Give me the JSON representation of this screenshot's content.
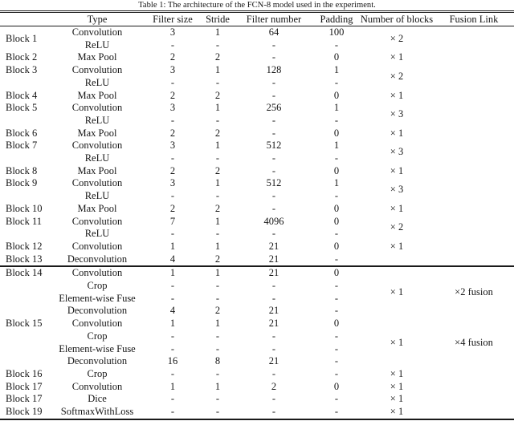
{
  "caption": "Table 1: The architecture of the FCN-8 model used in the experiment.",
  "table": {
    "columns": [
      "",
      "Type",
      "Filter size",
      "Stride",
      "Filter number",
      "Padding",
      "Number of blocks",
      "Fusion Link"
    ],
    "groups": [
      {
        "block": "Block 1",
        "valign": "middle",
        "num": "× 2",
        "fusion": "",
        "rule_after": false,
        "rows": [
          [
            "Convolution",
            "3",
            "1",
            "64",
            "100"
          ],
          [
            "ReLU",
            "-",
            "-",
            "-",
            "-"
          ]
        ]
      },
      {
        "block": "Block 2",
        "valign": "middle",
        "num": "× 1",
        "fusion": "",
        "rule_after": false,
        "rows": [
          [
            "Max Pool",
            "2",
            "2",
            "-",
            "0"
          ]
        ]
      },
      {
        "block": "Block 3",
        "valign": "top",
        "num": "× 2",
        "fusion": "",
        "rule_after": false,
        "rows": [
          [
            "Convolution",
            "3",
            "1",
            "128",
            "1"
          ],
          [
            "ReLU",
            "-",
            "-",
            "-",
            "-"
          ]
        ]
      },
      {
        "block": "Block 4",
        "valign": "middle",
        "num": "× 1",
        "fusion": "",
        "rule_after": false,
        "rows": [
          [
            "Max Pool",
            "2",
            "2",
            "-",
            "0"
          ]
        ]
      },
      {
        "block": "Block 5",
        "valign": "top",
        "num": "× 3",
        "fusion": "",
        "rule_after": false,
        "rows": [
          [
            "Convolution",
            "3",
            "1",
            "256",
            "1"
          ],
          [
            "ReLU",
            "-",
            "-",
            "-",
            "-"
          ]
        ]
      },
      {
        "block": "Block 6",
        "valign": "middle",
        "num": "× 1",
        "fusion": "",
        "rule_after": false,
        "rows": [
          [
            "Max Pool",
            "2",
            "2",
            "-",
            "0"
          ]
        ]
      },
      {
        "block": "Block 7",
        "valign": "top",
        "num": "× 3",
        "fusion": "",
        "rule_after": false,
        "rows": [
          [
            "Convolution",
            "3",
            "1",
            "512",
            "1"
          ],
          [
            "ReLU",
            "-",
            "-",
            "-",
            "-"
          ]
        ]
      },
      {
        "block": "Block 8",
        "valign": "middle",
        "num": "× 1",
        "fusion": "",
        "rule_after": false,
        "rows": [
          [
            "Max Pool",
            "2",
            "2",
            "-",
            "0"
          ]
        ]
      },
      {
        "block": "Block 9",
        "valign": "top",
        "num": "× 3",
        "fusion": "",
        "rule_after": false,
        "rows": [
          [
            "Convolution",
            "3",
            "1",
            "512",
            "1"
          ],
          [
            "ReLU",
            "-",
            "-",
            "-",
            "-"
          ]
        ]
      },
      {
        "block": "Block 10",
        "valign": "middle",
        "num": "× 1",
        "fusion": "",
        "rule_after": false,
        "rows": [
          [
            "Max Pool",
            "2",
            "2",
            "-",
            "0"
          ]
        ]
      },
      {
        "block": "Block 11",
        "valign": "top",
        "num": "× 2",
        "fusion": "",
        "rule_after": false,
        "rows": [
          [
            "Convolution",
            "7",
            "1",
            "4096",
            "0"
          ],
          [
            "ReLU",
            "-",
            "-",
            "-",
            "-"
          ]
        ]
      },
      {
        "block": "Block 12",
        "valign": "middle",
        "num": "× 1",
        "fusion": "",
        "rule_after": false,
        "rows": [
          [
            "Convolution",
            "1",
            "1",
            "21",
            "0"
          ]
        ]
      },
      {
        "block": "Block 13",
        "valign": "middle",
        "num": "",
        "fusion": "",
        "rule_after": true,
        "rows": [
          [
            "Deconvolution",
            "4",
            "2",
            "21",
            "-"
          ]
        ]
      },
      {
        "block": "Block 14",
        "valign": "top",
        "num": "× 1",
        "fusion": "×2 fusion",
        "rule_after": false,
        "rows": [
          [
            "Convolution",
            "1",
            "1",
            "21",
            "0"
          ],
          [
            "Crop",
            "-",
            "-",
            "-",
            "-"
          ],
          [
            "Element-wise Fuse",
            "-",
            "-",
            "-",
            "-"
          ],
          [
            "Deconvolution",
            "4",
            "2",
            "21",
            "-"
          ]
        ]
      },
      {
        "block": "Block 15",
        "valign": "top",
        "num": "× 1",
        "fusion": "×4 fusion",
        "rule_after": false,
        "rows": [
          [
            "Convolution",
            "1",
            "1",
            "21",
            "0"
          ],
          [
            "Crop",
            "-",
            "-",
            "-",
            "-"
          ],
          [
            "Element-wise Fuse",
            "-",
            "-",
            "-",
            "-"
          ],
          [
            "Deconvolution",
            "16",
            "8",
            "21",
            "-"
          ]
        ]
      },
      {
        "block": "Block 16",
        "valign": "middle",
        "num": "× 1",
        "fusion": "",
        "rule_after": false,
        "rows": [
          [
            "Crop",
            "-",
            "-",
            "-",
            "-"
          ]
        ]
      },
      {
        "block": "Block 17",
        "valign": "middle",
        "num": "× 1",
        "fusion": "",
        "rule_after": false,
        "rows": [
          [
            "Convolution",
            "1",
            "1",
            "2",
            "0"
          ]
        ]
      },
      {
        "block": "Block 17",
        "valign": "middle",
        "num": "× 1",
        "fusion": "",
        "rule_after": false,
        "rows": [
          [
            "Dice",
            "-",
            "-",
            "-",
            "-"
          ]
        ]
      },
      {
        "block": "Block 19",
        "valign": "middle",
        "num": "× 1",
        "fusion": "",
        "rule_after": false,
        "rows": [
          [
            "SoftmaxWithLoss",
            "-",
            "-",
            "-",
            "-"
          ]
        ]
      }
    ]
  }
}
